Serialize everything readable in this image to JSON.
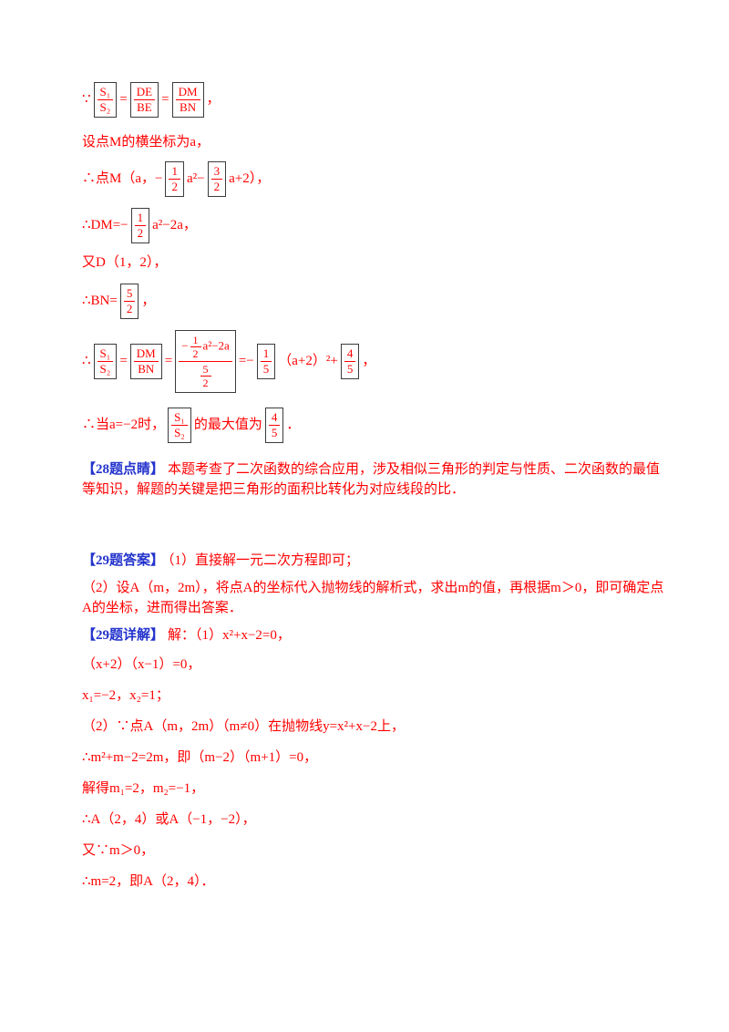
{
  "colors": {
    "text_red": "#ff0000",
    "label_blue": "#2333cc",
    "equation_box": "#3c3c3c",
    "background": "#ffffff"
  },
  "blocks": [
    {
      "name": "ratio-given-line",
      "cls": "mb14",
      "tokens": [
        {
          "t": "txt",
          "v": "∵"
        },
        {
          "t": "frac",
          "box": true,
          "num": "S₁",
          "den": "S₂"
        },
        {
          "t": "txt",
          "v": "="
        },
        {
          "t": "frac",
          "box": true,
          "num": "DE",
          "den": "BE"
        },
        {
          "t": "txt",
          "v": "="
        },
        {
          "t": "frac",
          "box": true,
          "num": "DM",
          "den": "BN"
        },
        {
          "t": "txt",
          "v": "，"
        }
      ]
    },
    {
      "name": "setup-line",
      "cls": "mb8",
      "tokens": [
        {
          "t": "txt",
          "v": "设点M的横坐标为a，"
        }
      ]
    },
    {
      "name": "point-m-line",
      "cls": "mb8",
      "tokens": [
        {
          "t": "txt",
          "v": "∴点M（a，−"
        },
        {
          "t": "frac",
          "box": true,
          "num": "1",
          "den": "2"
        },
        {
          "t": "txt",
          "v": "a²−"
        },
        {
          "t": "frac",
          "box": true,
          "num": "3",
          "den": "2"
        },
        {
          "t": "txt",
          "v": "a+2），"
        }
      ]
    },
    {
      "name": "dm-line",
      "cls": "mb8",
      "tokens": [
        {
          "t": "txt",
          "v": "∴DM=−"
        },
        {
          "t": "frac",
          "box": true,
          "num": "1",
          "den": "2"
        },
        {
          "t": "txt",
          "v": "a²−2a，"
        }
      ]
    },
    {
      "name": "point-d-line",
      "cls": "mb10",
      "tokens": [
        {
          "t": "txt",
          "v": "又D（1，2），"
        }
      ]
    },
    {
      "name": "bn-line",
      "cls": "mb8",
      "tokens": [
        {
          "t": "txt",
          "v": "∴BN="
        },
        {
          "t": "frac",
          "box": true,
          "num": "5",
          "den": "2"
        },
        {
          "t": "txt",
          "v": "，"
        }
      ]
    },
    {
      "name": "ratio-calc-line",
      "cls": "mb12",
      "tokens": [
        {
          "t": "txt",
          "v": "∴"
        },
        {
          "t": "frac",
          "box": true,
          "num": "S₁",
          "den": "S₂"
        },
        {
          "t": "txt",
          "v": "="
        },
        {
          "t": "frac",
          "box": true,
          "num": "DM",
          "den": "BN"
        },
        {
          "t": "txt",
          "v": "="
        },
        {
          "t": "frac",
          "box": true,
          "num": [
            {
              "t": "txt",
              "v": "−"
            },
            {
              "t": "frac",
              "num": "1",
              "den": "2"
            },
            {
              "t": "txt",
              "v": "a²−2a"
            }
          ],
          "den": [
            {
              "t": "frac",
              "num": "5",
              "den": "2"
            }
          ]
        },
        {
          "t": "txt",
          "v": "=−"
        },
        {
          "t": "frac",
          "box": true,
          "num": "1",
          "den": "5"
        },
        {
          "t": "txt",
          "v": "（a+2）²+"
        },
        {
          "t": "frac",
          "box": true,
          "num": "4",
          "den": "5"
        },
        {
          "t": "txt",
          "v": "，"
        }
      ]
    },
    {
      "name": "max-value-line",
      "cls": "mb16",
      "tokens": [
        {
          "t": "txt",
          "v": "∴当a=−2时，"
        },
        {
          "t": "frac",
          "box": true,
          "num": "S₁",
          "den": "S₂"
        },
        {
          "t": "txt",
          "v": "的最大值为"
        },
        {
          "t": "frac",
          "box": true,
          "num": "4",
          "den": "5"
        },
        {
          "t": "txt",
          "v": "．"
        }
      ]
    },
    {
      "name": "dianjing-para",
      "cls": "mb56",
      "tokens": [
        {
          "t": "label",
          "v": "【28题点睛】"
        },
        {
          "t": "txt",
          "v": "本题考查了二次函数的综合应用，涉及相似三角形的判定与性质、二次函数的最值等知识，解题的关键是把三角形的面积比转化为对应线段的比．"
        }
      ]
    },
    {
      "name": "answer-line",
      "cls": "mb8",
      "tokens": [
        {
          "t": "label",
          "v": "【29题答案】"
        },
        {
          "t": "txt",
          "v": "（1）直接解一元二次方程即可；"
        }
      ]
    },
    {
      "name": "analysis-para",
      "cls": "mb8",
      "tokens": [
        {
          "t": "txt",
          "v": "（2）设A（m，2m），将点A的坐标代入抛物线的解析式，求出m的值，再根据m＞0，即可确定点A的坐标，进而得出答案．"
        }
      ]
    },
    {
      "name": "detail-line",
      "cls": "mb10",
      "tokens": [
        {
          "t": "label",
          "v": "【29题详解】"
        },
        {
          "t": "txt",
          "v": "解：（1）x²+x−2=0，"
        }
      ]
    },
    {
      "name": "factor-line",
      "cls": "mb12",
      "tokens": [
        {
          "t": "txt",
          "v": "（x+2）（x−1）=0，"
        }
      ]
    },
    {
      "name": "roots-line",
      "cls": "mb12",
      "tokens": [
        {
          "t": "txt",
          "v": "x₁=−2，x₂=1；"
        }
      ]
    },
    {
      "name": "sub-point-line",
      "cls": "mb12",
      "tokens": [
        {
          "t": "txt",
          "v": "（2）∵点A（m，2m）（m≠0）在抛物线y=x²+x−2上，"
        }
      ]
    },
    {
      "name": "equation-line",
      "cls": "mb12",
      "tokens": [
        {
          "t": "txt",
          "v": "∴m²+m−2=2m，即（m−2）（m+1）=0，"
        }
      ]
    },
    {
      "name": "solve-line",
      "cls": "mb12",
      "tokens": [
        {
          "t": "txt",
          "v": "解得m₁=2，m₂=−1，"
        }
      ]
    },
    {
      "name": "points-line",
      "cls": "mb12",
      "tokens": [
        {
          "t": "txt",
          "v": "∴A（2，4）或A（−1，−2），"
        }
      ]
    },
    {
      "name": "constraint-line",
      "cls": "mb12",
      "tokens": [
        {
          "t": "txt",
          "v": "又∵m＞0，"
        }
      ]
    },
    {
      "name": "final-line",
      "cls": "mb0",
      "tokens": [
        {
          "t": "txt",
          "v": "∴m=2，即A（2，4）．"
        }
      ]
    }
  ]
}
